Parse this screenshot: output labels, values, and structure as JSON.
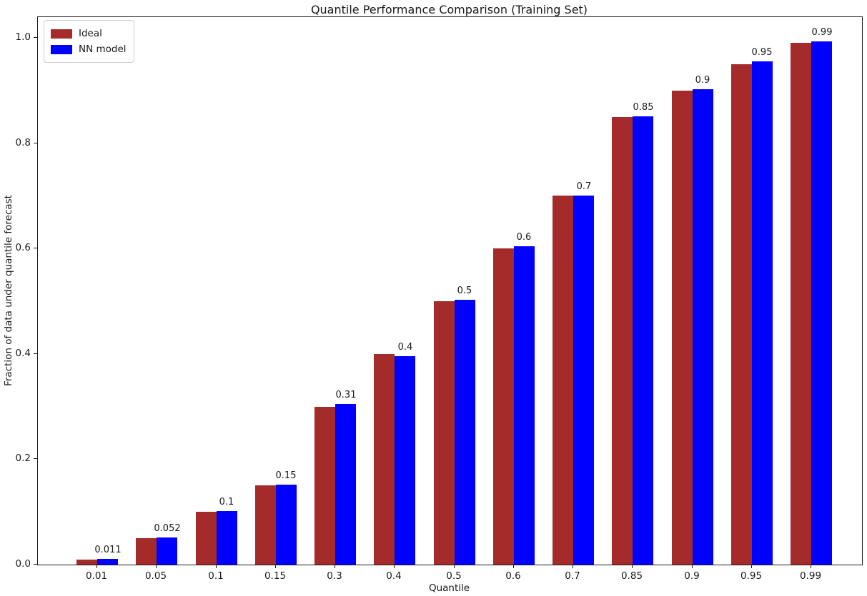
{
  "figure": {
    "title": "Quantile Performance Comparison (Training Set)",
    "xlabel": "Quantile",
    "ylabel": "Fraction of data under quantile forecast"
  },
  "legend": {
    "position": "upper left",
    "items": [
      {
        "label": "Ideal",
        "color": "#a52a2a"
      },
      {
        "label": "NN model",
        "color": "#0000ff"
      }
    ]
  },
  "chart_data": {
    "type": "bar",
    "title": "Quantile Performance Comparison (Training Set)",
    "xlabel": "Quantile",
    "ylabel": "Fraction of data under quantile forecast",
    "categories": [
      "0.01",
      "0.05",
      "0.1",
      "0.15",
      "0.3",
      "0.4",
      "0.5",
      "0.6",
      "0.7",
      "0.85",
      "0.9",
      "0.95",
      "0.99"
    ],
    "series": [
      {
        "name": "Ideal",
        "color": "#a52a2a",
        "values": [
          0.01,
          0.05,
          0.1,
          0.15,
          0.3,
          0.4,
          0.5,
          0.6,
          0.7,
          0.85,
          0.9,
          0.95,
          0.99
        ]
      },
      {
        "name": "NN model",
        "color": "#0000ff",
        "values": [
          0.011,
          0.052,
          0.101,
          0.152,
          0.305,
          0.396,
          0.503,
          0.605,
          0.701,
          0.851,
          0.903,
          0.955,
          0.993
        ]
      }
    ],
    "bar_labels": [
      "0.011",
      "0.052",
      "0.1",
      "0.15",
      "0.31",
      "0.4",
      "0.5",
      "0.6",
      "0.7",
      "0.85",
      "0.9",
      "0.95",
      "0.99"
    ],
    "yticks": [
      0.0,
      0.2,
      0.4,
      0.6,
      0.8,
      1.0
    ],
    "ytick_labels": [
      "0.0",
      "0.2",
      "0.4",
      "0.6",
      "0.8",
      "1.0"
    ],
    "ylim": [
      0,
      1.039
    ],
    "grid": false,
    "legend_position": "upper left"
  }
}
